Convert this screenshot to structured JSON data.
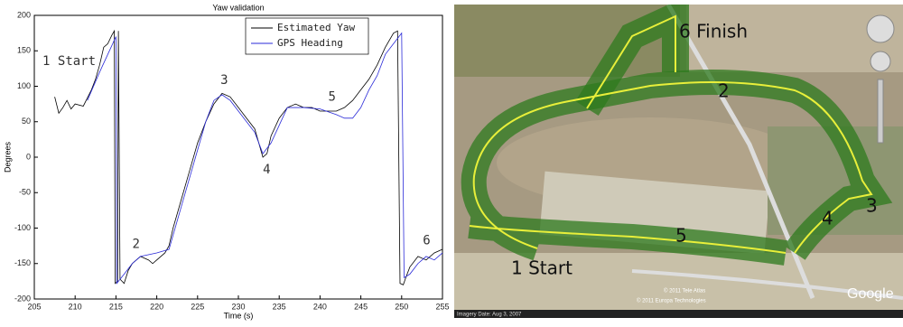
{
  "chart_data": {
    "type": "line",
    "title": "Yaw validation",
    "x_label": "Time (s)",
    "y_label": "Degrees",
    "xlim": [
      205,
      255
    ],
    "xticks": [
      205,
      210,
      215,
      220,
      225,
      230,
      235,
      240,
      245,
      250,
      255
    ],
    "ylim": [
      -200,
      200
    ],
    "yticks": [
      -200,
      -150,
      -100,
      -50,
      0,
      50,
      100,
      150,
      200
    ],
    "legend": "upper right",
    "series": [
      {
        "name": "Estimated Yaw",
        "color": "#000000",
        "x": [
          207.5,
          208,
          208.5,
          209,
          209.5,
          210,
          211,
          212,
          212.5,
          213,
          213.5,
          214,
          214.5,
          214.8,
          214.9,
          215.2,
          215.3,
          215.5,
          216,
          216.5,
          217,
          218,
          219,
          219.5,
          220,
          221,
          221.5,
          222,
          223,
          224,
          225,
          226,
          227,
          228,
          229,
          230,
          231,
          232,
          233,
          233.5,
          234,
          235,
          236,
          237,
          238,
          239,
          240,
          241,
          242,
          243,
          244,
          245,
          246,
          247,
          248,
          249,
          249.5,
          249.8,
          250.2,
          250.5,
          251,
          252,
          253,
          254,
          255
        ],
        "values": [
          85,
          62,
          70,
          80,
          68,
          75,
          72,
          95,
          110,
          130,
          155,
          160,
          172,
          178,
          -178,
          -175,
          178,
          -172,
          -178,
          -160,
          -150,
          -140,
          -145,
          -150,
          -145,
          -135,
          -125,
          -100,
          -60,
          -20,
          20,
          50,
          75,
          90,
          85,
          70,
          55,
          40,
          0,
          5,
          30,
          55,
          70,
          75,
          70,
          70,
          65,
          65,
          65,
          70,
          80,
          95,
          110,
          130,
          155,
          175,
          178,
          -178,
          -180,
          -170,
          -155,
          -140,
          -145,
          -135,
          -130
        ]
      },
      {
        "name": "GPS Heading",
        "color": "#2a2ad8",
        "x": [
          211.5,
          213,
          214,
          215,
          215.1,
          216,
          217,
          218,
          220,
          221.5,
          223,
          225,
          226,
          227,
          228,
          229,
          230,
          231,
          232,
          233,
          234,
          235,
          236,
          238,
          240,
          242,
          243,
          244,
          245,
          246,
          247,
          248,
          249,
          250,
          250.3,
          251,
          252,
          253,
          254,
          255
        ],
        "values": [
          80,
          120,
          145,
          170,
          -178,
          -165,
          -150,
          -140,
          -135,
          -130,
          -70,
          10,
          50,
          80,
          88,
          80,
          65,
          50,
          35,
          5,
          20,
          45,
          70,
          70,
          68,
          60,
          55,
          55,
          70,
          95,
          115,
          145,
          160,
          175,
          -170,
          -165,
          -150,
          -140,
          -145,
          -135
        ]
      }
    ],
    "annotations": [
      {
        "text": "1 Start",
        "x": 206,
        "y": 135
      },
      {
        "text": "2",
        "x": 217,
        "y": -123
      },
      {
        "text": "3",
        "x": 227.8,
        "y": 108
      },
      {
        "text": "4",
        "x": 233,
        "y": -18
      },
      {
        "text": "5",
        "x": 241,
        "y": 85
      },
      {
        "text": "6",
        "x": 252.6,
        "y": -118
      }
    ]
  },
  "map_panel": {
    "labels": [
      "6 Finish",
      "2",
      "3",
      "4",
      "5",
      "1 Start"
    ],
    "imagery_date": "Imagery Date: Aug 3, 2007",
    "attribution": [
      "© 2011 Tele Atlas",
      "© 2011 Europa Technologies"
    ],
    "logo": "Google"
  }
}
